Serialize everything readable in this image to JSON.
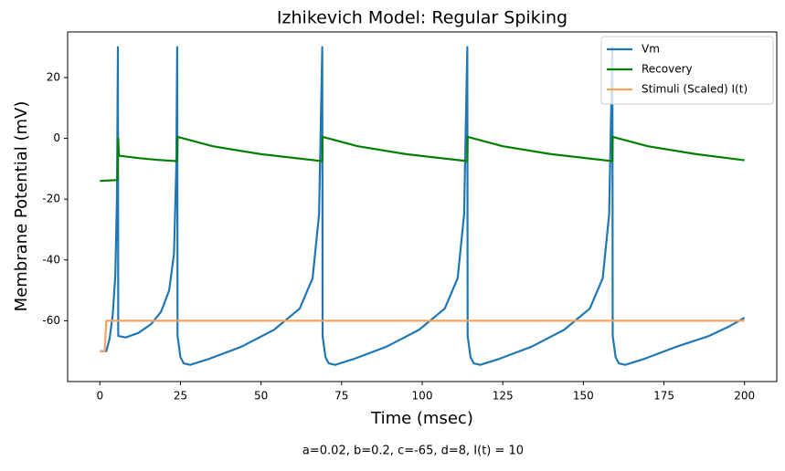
{
  "chart_data": {
    "type": "line",
    "title": "Izhikevich Model: Regular Spiking",
    "x_label": "Time (msec)",
    "y_label": "Membrane Potential (mV)",
    "footnote": "a=0.02, b=0.2, c=-65, d=8, I(t) = 10",
    "xlim": [
      -10,
      210
    ],
    "ylim": [
      -80,
      35
    ],
    "xticks": [
      0,
      25,
      50,
      75,
      100,
      125,
      150,
      175,
      200
    ],
    "yticks": [
      -60,
      -40,
      -20,
      0,
      20
    ],
    "legend": "upper right",
    "series": [
      {
        "name": "Vm",
        "color": "#1f77b4",
        "x": [
          0,
          2,
          3,
          4,
          4.8,
          5.3,
          5.6,
          5.7,
          8,
          12,
          16,
          19,
          21.5,
          23,
          23.7,
          24,
          24.1,
          25,
          26,
          28,
          34,
          44,
          54,
          62,
          66,
          68,
          69,
          69.1,
          70,
          71,
          73,
          79,
          89,
          99,
          107,
          111,
          113,
          114,
          114.1,
          115,
          116,
          118,
          124,
          134,
          144,
          152,
          156,
          158,
          159,
          159.1,
          160,
          161,
          163,
          169,
          179,
          189,
          195,
          200
        ],
        "values": [
          -70,
          -70,
          -66,
          -58,
          -45,
          -20,
          30,
          -65,
          -65.5,
          -64,
          -61,
          -57,
          -50,
          -38,
          -10,
          30,
          -65,
          -72,
          -74,
          -74.5,
          -72.5,
          -68.5,
          -63,
          -56,
          -46,
          -25,
          30,
          -65,
          -72,
          -74,
          -74.5,
          -72.5,
          -68.5,
          -63,
          -56,
          -46,
          -25,
          30,
          -65,
          -72,
          -74,
          -74.5,
          -72.5,
          -68.5,
          -63,
          -56,
          -46,
          -25,
          30,
          -65,
          -72,
          -74,
          -74.5,
          -72.5,
          -68.5,
          -65,
          -62,
          -59
        ]
      },
      {
        "name": "Recovery",
        "color": "#008000",
        "x": [
          0,
          5.5,
          5.7,
          5.9,
          12,
          18,
          24,
          24.1,
          35,
          50,
          69,
          69.1,
          80,
          95,
          114,
          114.1,
          125,
          140,
          159,
          159.1,
          170,
          185,
          200
        ],
        "values": [
          -14,
          -13.7,
          0,
          -5.7,
          -6.5,
          -7.1,
          -7.5,
          0.5,
          -2.6,
          -5.2,
          -7.5,
          0.5,
          -2.6,
          -5.2,
          -7.5,
          0.5,
          -2.6,
          -5.2,
          -7.5,
          0.5,
          -2.6,
          -5.2,
          -7.2
        ]
      },
      {
        "name": "Stimuli (Scaled) I(t)",
        "color": "#f4a460",
        "x": [
          0,
          1.5,
          2,
          200
        ],
        "values": [
          -70,
          -70,
          -60,
          -60
        ]
      }
    ]
  }
}
